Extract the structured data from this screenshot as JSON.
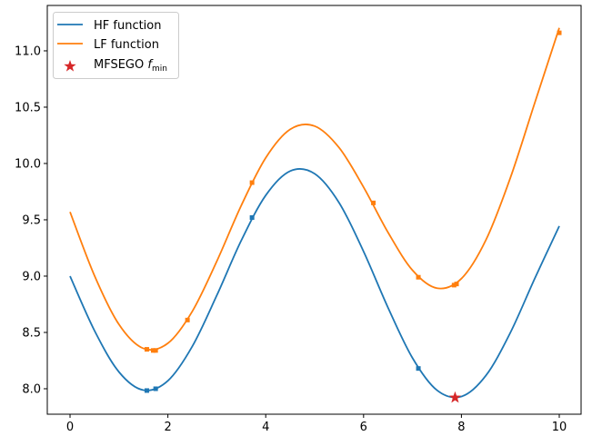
{
  "chart_data": {
    "type": "line",
    "title": "",
    "xlabel": "",
    "ylabel": "",
    "xlim": [
      -0.465,
      10.446
    ],
    "ylim": [
      7.774,
      11.403
    ],
    "xticks": [
      0,
      2,
      4,
      6,
      8,
      10
    ],
    "xtick_labels": [
      "0",
      "2",
      "4",
      "6",
      "8",
      "10"
    ],
    "yticks": [
      8.0,
      8.5,
      9.0,
      9.5,
      10.0,
      10.5,
      11.0
    ],
    "ytick_labels": [
      "8.0",
      "8.5",
      "9.0",
      "9.5",
      "10.0",
      "10.5",
      "11.0"
    ],
    "grid": false,
    "legend_position": "top-left",
    "x": [
      0,
      0.5,
      1,
      1.5,
      2,
      2.5,
      3,
      3.5,
      4,
      4.5,
      5,
      5.5,
      6,
      6.5,
      7,
      7.5,
      8,
      8.5,
      9,
      9.5,
      10
    ],
    "series": [
      {
        "name": "HF function",
        "color": "#1f77b4",
        "values": [
          9.0,
          8.516,
          8.149,
          7.988,
          8.071,
          8.377,
          8.829,
          9.316,
          9.717,
          9.933,
          9.909,
          9.651,
          9.219,
          8.72,
          8.273,
          7.987,
          7.931,
          8.117,
          8.498,
          8.98,
          9.444
        ],
        "samples": {
          "x": [
            1.57,
            1.75,
            3.72,
            7.12
          ],
          "y": [
            7.984,
            8.0,
            9.52,
            8.18
          ]
        }
      },
      {
        "name": "LF function",
        "color": "#ff7f0e",
        "values": [
          9.57,
          9.004,
          8.571,
          8.358,
          8.404,
          8.688,
          9.132,
          9.627,
          10.05,
          10.303,
          10.332,
          10.14,
          9.79,
          9.388,
          9.052,
          8.893,
          8.978,
          9.32,
          9.872,
          10.539,
          11.204
        ],
        "samples": {
          "x": [
            1.57,
            1.7,
            1.75,
            2.4,
            3.72,
            6.2,
            7.12,
            7.85,
            7.9,
            10.0
          ],
          "y": [
            8.35,
            8.34,
            8.34,
            8.61,
            9.83,
            9.65,
            8.99,
            8.92,
            8.93,
            11.16
          ]
        }
      }
    ],
    "optimum": {
      "name": "MFSEGO f_min",
      "label_main": "MFSEGO ",
      "label_f": "f",
      "label_sub": "min",
      "x": 7.87,
      "y": 7.921,
      "color": "#d62728"
    }
  }
}
